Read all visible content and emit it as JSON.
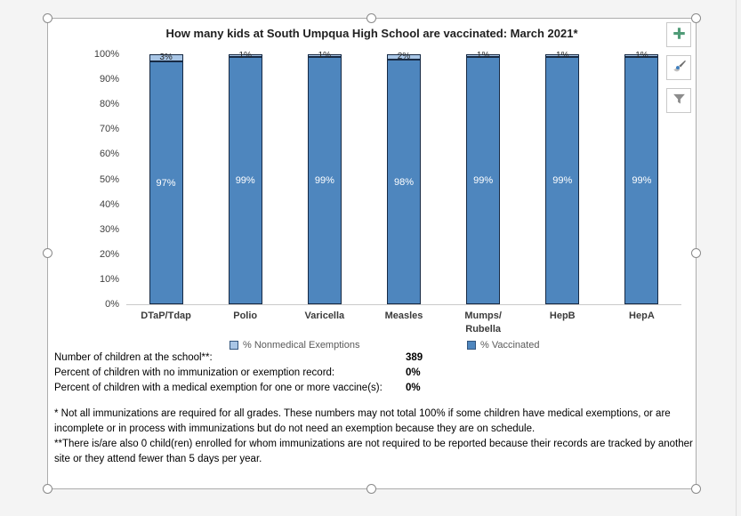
{
  "chart_data": {
    "type": "bar",
    "stacked": true,
    "title": "How many kids at South Umpqua High School are vaccinated: March 2021*",
    "categories": [
      "DTaP/Tdap",
      "Polio",
      "Varicella",
      "Measles",
      "Mumps/\nRubella",
      "HepB",
      "HepA"
    ],
    "series": [
      {
        "name": "% Nonmedical Exemptions",
        "values": [
          3,
          1,
          1,
          2,
          1,
          1,
          1
        ],
        "color": "#A9C6E6",
        "stack_position": "top"
      },
      {
        "name": "% Vaccinated",
        "values": [
          97,
          99,
          99,
          98,
          99,
          99,
          99
        ],
        "color": "#4E86BE",
        "stack_position": "bottom"
      }
    ],
    "data_labels": {
      "% Nonmedical Exemptions": [
        "3%",
        "1%",
        "1%",
        "2%",
        "1%",
        "1%",
        "1%"
      ],
      "% Vaccinated": [
        "97%",
        "99%",
        "99%",
        "98%",
        "99%",
        "99%",
        "99%"
      ]
    },
    "ylim": [
      0,
      100
    ],
    "y_tick_labels": [
      "0%",
      "10%",
      "20%",
      "30%",
      "40%",
      "50%",
      "60%",
      "70%",
      "80%",
      "90%",
      "100%"
    ],
    "grid": false,
    "legend_position": "bottom",
    "bar_border_color": "#172A44"
  },
  "stats": [
    {
      "label": "Number of children at the school**:",
      "value": "389"
    },
    {
      "label": "Percent of children with no immunization or exemption record:",
      "value": "0%"
    },
    {
      "label": "Percent of children with a medical exemption for one or more vaccine(s):",
      "value": "0%"
    }
  ],
  "footnotes": [
    "* Not all immunizations are required for all grades. These numbers may not total 100% if some children have medical exemptions, or are incomplete or in process with immunizations but do not need an exemption because they are on schedule.",
    "**There is/are also  0  child(ren) enrolled for whom immunizations are not required to be reported because their records  are tracked by another site or they attend fewer than 5 days per year."
  ],
  "icons": {
    "chart_elements": "plus-icon",
    "chart_styles": "paintbrush-icon",
    "chart_filters": "funnel-icon"
  },
  "colors": {
    "accent_plus": "#4F9B77",
    "brush_blue": "#3D7EBF",
    "tool_gray": "#6E6E6E",
    "frame_border": "#ACACAC",
    "background": "#F4F4F4"
  }
}
